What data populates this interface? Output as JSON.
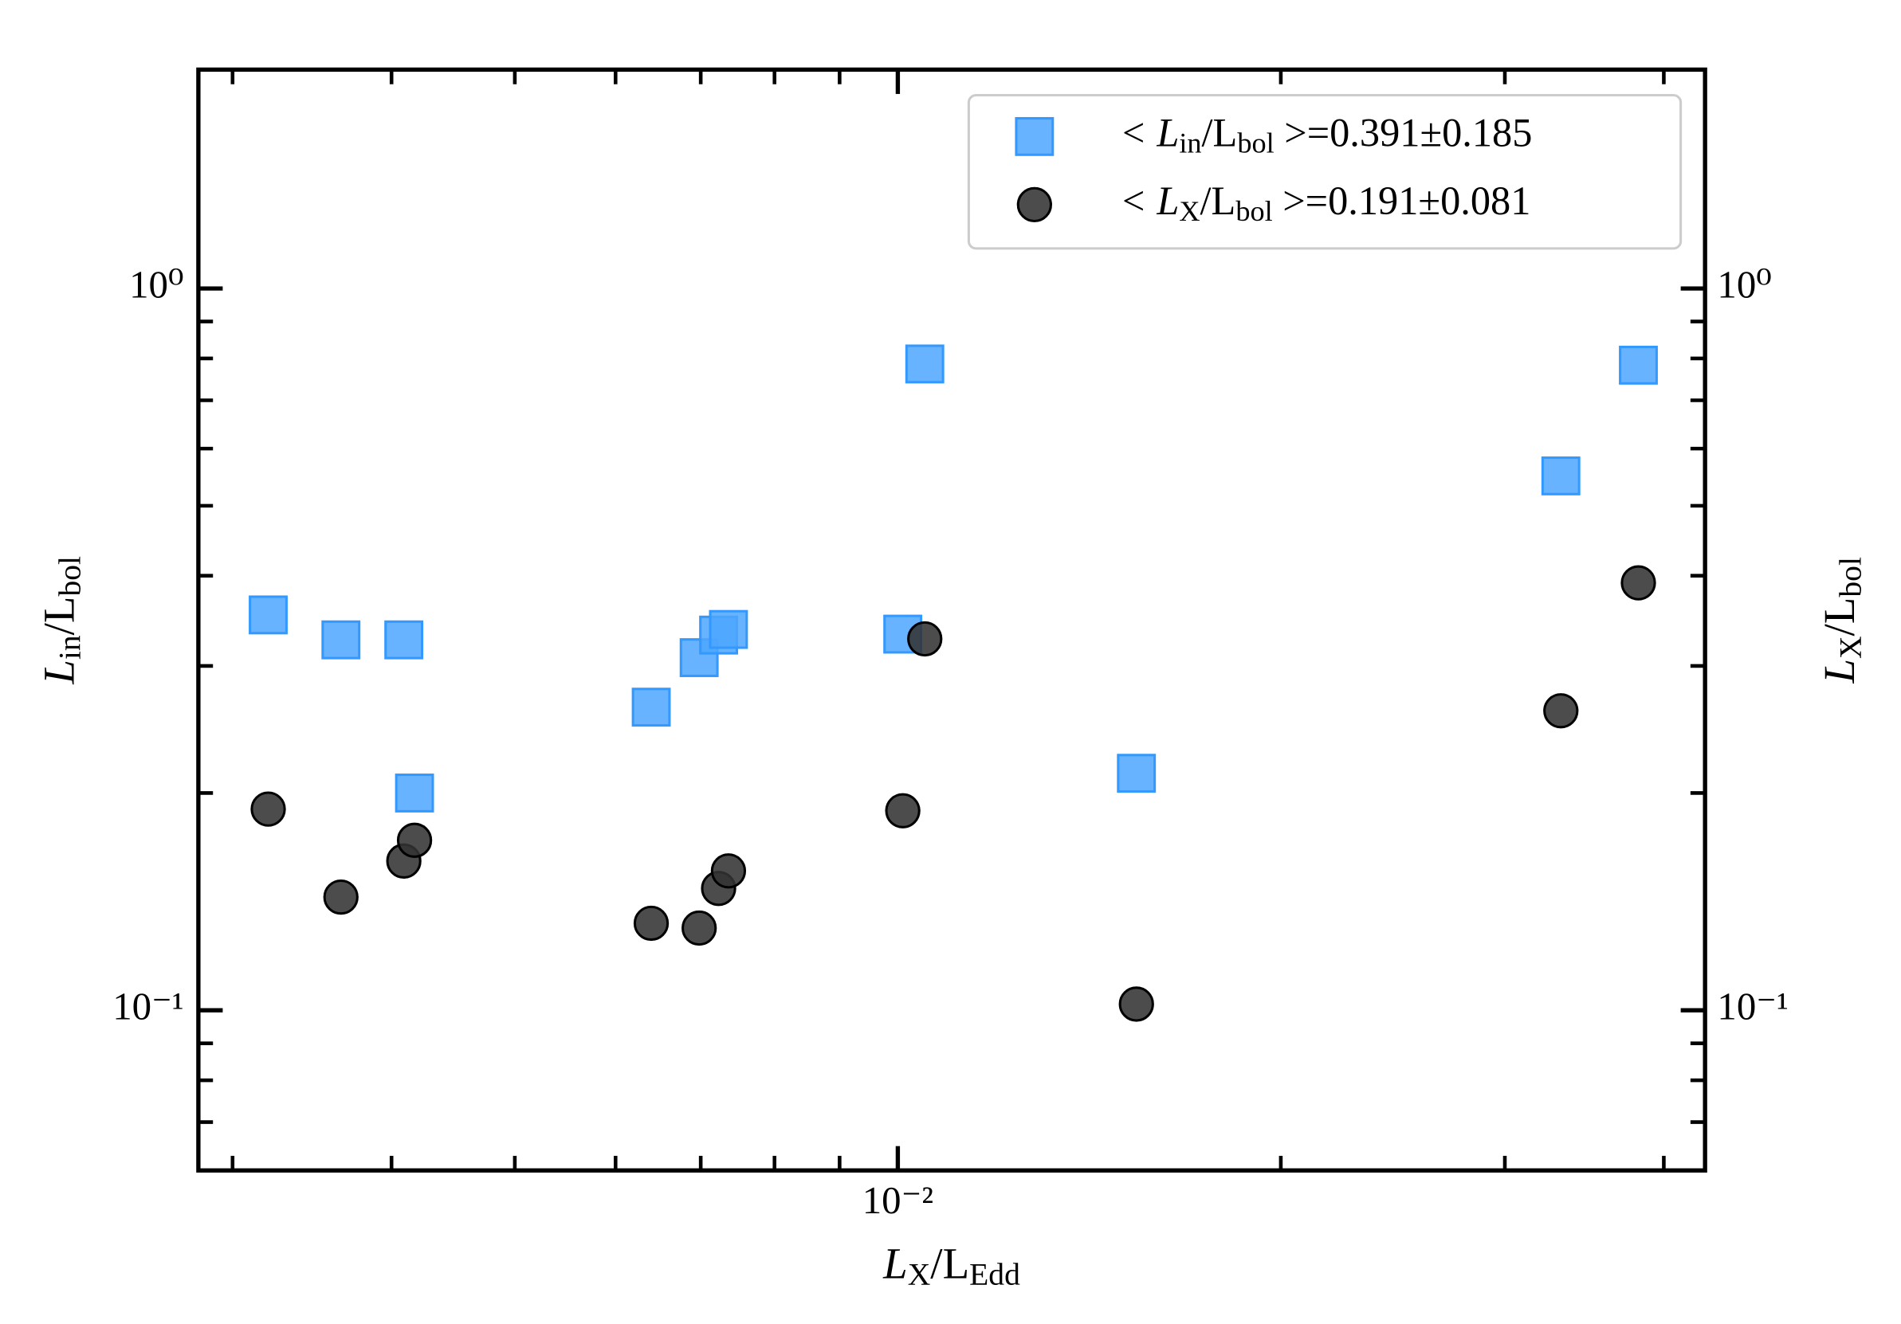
{
  "chart_data": {
    "type": "scatter",
    "xlabel": [
      "L",
      "X",
      "/L",
      "Edd"
    ],
    "ylabel": [
      "L",
      "in",
      "/L",
      "bol"
    ],
    "y2label": [
      "L",
      "X",
      "/L",
      "bol"
    ],
    "xscale": "log",
    "yscale": "log",
    "xlim": [
      0.00282,
      0.0431
    ],
    "ylim": [
      0.06,
      2.01
    ],
    "y2lim": [
      0.06,
      2.01
    ],
    "xticks": [
      {
        "value": 0.01,
        "label": "10⁻²"
      }
    ],
    "xminorticks": [
      0.003,
      0.004,
      0.005,
      0.006,
      0.007,
      0.008,
      0.009,
      0.02,
      0.03,
      0.04
    ],
    "yticks": [
      {
        "value": 0.1,
        "label": "10⁻¹"
      },
      {
        "value": 1,
        "label": "10⁰"
      }
    ],
    "yminorticks": [
      0.07,
      0.08,
      0.09,
      0.2,
      0.3,
      0.4,
      0.5,
      0.6,
      0.7,
      0.8,
      0.9
    ],
    "y2ticks": [
      {
        "value": 0.1,
        "label": "10⁻¹"
      },
      {
        "value": 1,
        "label": "10⁰"
      }
    ],
    "legend": "upper right",
    "series": [
      {
        "name": [
          "< L",
          "in",
          "/L",
          "bol",
          " >=0.391±0.185"
        ],
        "color": "#4da6ff",
        "marker": "square",
        "x": [
          0.0032,
          0.00365,
          0.00409,
          0.00417,
          0.0064,
          0.00698,
          0.00723,
          0.00736,
          0.01009,
          0.0105,
          0.0154,
          0.0332,
          0.0382
        ],
        "values": [
          0.353,
          0.326,
          0.326,
          0.2,
          0.263,
          0.308,
          0.331,
          0.337,
          0.332,
          0.786,
          0.213,
          0.55,
          0.783
        ]
      },
      {
        "name": [
          "< L",
          "X",
          "/L",
          "bol",
          " >=0.191±0.081"
        ],
        "color": "#333333",
        "marker": "circle",
        "x": [
          0.0032,
          0.00365,
          0.00409,
          0.00417,
          0.0064,
          0.00698,
          0.00723,
          0.00736,
          0.01009,
          0.0105,
          0.0154,
          0.0332,
          0.0382
        ],
        "values": [
          0.19,
          0.1435,
          0.161,
          0.172,
          0.132,
          0.13,
          0.1475,
          0.156,
          0.189,
          0.327,
          0.102,
          0.26,
          0.391
        ]
      }
    ]
  }
}
